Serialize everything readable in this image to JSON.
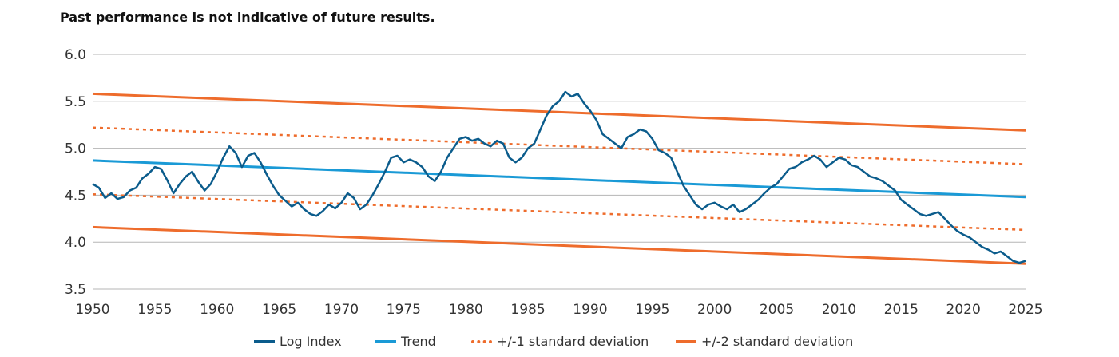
{
  "header": {
    "note": "Past performance is not indicative of future results."
  },
  "chart_data": {
    "type": "line",
    "title": "",
    "xlabel": "",
    "ylabel": "",
    "xlim": [
      1950,
      2025
    ],
    "ylim": [
      3.5,
      6.0
    ],
    "x_ticks": [
      "1950",
      "1955",
      "1960",
      "1965",
      "1970",
      "1975",
      "1980",
      "1985",
      "1990",
      "1995",
      "2000",
      "2005",
      "2010",
      "2015",
      "2020",
      "2025"
    ],
    "y_ticks": [
      "6.0",
      "5.5",
      "5.0",
      "4.5",
      "4.0",
      "3.5"
    ],
    "grid": "horizontal",
    "legend_position": "bottom",
    "series": [
      {
        "name": "Log Index",
        "color": "#0b5c8c",
        "style": "solid",
        "x": [
          1950,
          1950.5,
          1951,
          1951.5,
          1952,
          1952.5,
          1953,
          1953.5,
          1954,
          1954.5,
          1955,
          1955.5,
          1956,
          1956.5,
          1957,
          1957.5,
          1958,
          1958.5,
          1959,
          1959.5,
          1960,
          1960.5,
          1961,
          1961.5,
          1962,
          1962.5,
          1963,
          1963.5,
          1964,
          1964.5,
          1965,
          1965.5,
          1966,
          1966.5,
          1967,
          1967.5,
          1968,
          1968.5,
          1969,
          1969.5,
          1970,
          1970.5,
          1971,
          1971.5,
          1972,
          1972.5,
          1973,
          1973.5,
          1974,
          1974.5,
          1975,
          1975.5,
          1976,
          1976.5,
          1977,
          1977.5,
          1978,
          1978.5,
          1979,
          1979.5,
          1980,
          1980.5,
          1981,
          1981.5,
          1982,
          1982.5,
          1983,
          1983.5,
          1984,
          1984.5,
          1985,
          1985.5,
          1986,
          1986.5,
          1987,
          1987.5,
          1988,
          1988.5,
          1989,
          1989.5,
          1990,
          1990.5,
          1991,
          1991.5,
          1992,
          1992.5,
          1993,
          1993.5,
          1994,
          1994.5,
          1995,
          1995.5,
          1996,
          1996.5,
          1997,
          1997.5,
          1998,
          1998.5,
          1999,
          1999.5,
          2000,
          2000.5,
          2001,
          2001.5,
          2002,
          2002.5,
          2003,
          2003.5,
          2004,
          2004.5,
          2005,
          2005.5,
          2006,
          2006.5,
          2007,
          2007.5,
          2008,
          2008.5,
          2009,
          2009.5,
          2010,
          2010.5,
          2011,
          2011.5,
          2012,
          2012.5,
          2013,
          2013.5,
          2014,
          2014.5,
          2015,
          2015.5,
          2016,
          2016.5,
          2017,
          2017.5,
          2018,
          2018.5,
          2019,
          2019.5,
          2020,
          2020.5,
          2021,
          2021.5,
          2022,
          2022.5,
          2023,
          2023.5,
          2024,
          2024.5,
          2025
        ],
        "values": [
          4.62,
          4.58,
          4.47,
          4.52,
          4.46,
          4.48,
          4.55,
          4.58,
          4.68,
          4.73,
          4.8,
          4.78,
          4.66,
          4.52,
          4.62,
          4.7,
          4.75,
          4.64,
          4.55,
          4.62,
          4.75,
          4.9,
          5.02,
          4.95,
          4.8,
          4.92,
          4.95,
          4.85,
          4.72,
          4.6,
          4.5,
          4.44,
          4.38,
          4.42,
          4.35,
          4.3,
          4.28,
          4.33,
          4.4,
          4.36,
          4.42,
          4.52,
          4.47,
          4.35,
          4.4,
          4.5,
          4.62,
          4.75,
          4.9,
          4.92,
          4.85,
          4.88,
          4.85,
          4.8,
          4.7,
          4.65,
          4.75,
          4.9,
          5.0,
          5.1,
          5.12,
          5.08,
          5.1,
          5.05,
          5.02,
          5.08,
          5.05,
          4.9,
          4.85,
          4.9,
          5.0,
          5.05,
          5.2,
          5.35,
          5.45,
          5.5,
          5.6,
          5.55,
          5.58,
          5.48,
          5.4,
          5.3,
          5.15,
          5.1,
          5.05,
          5.0,
          5.12,
          5.15,
          5.2,
          5.18,
          5.1,
          4.98,
          4.95,
          4.9,
          4.75,
          4.6,
          4.5,
          4.4,
          4.35,
          4.4,
          4.42,
          4.38,
          4.35,
          4.4,
          4.32,
          4.35,
          4.4,
          4.45,
          4.52,
          4.58,
          4.62,
          4.7,
          4.78,
          4.8,
          4.85,
          4.88,
          4.92,
          4.88,
          4.8,
          4.85,
          4.9,
          4.88,
          4.82,
          4.8,
          4.75,
          4.7,
          4.68,
          4.65,
          4.6,
          4.55,
          4.45,
          4.4,
          4.35,
          4.3,
          4.28,
          4.3,
          4.32,
          4.25,
          4.18,
          4.12,
          4.08,
          4.05,
          4.0,
          3.95,
          3.92,
          3.88,
          3.9,
          3.85,
          3.8,
          3.78,
          3.8
        ]
      },
      {
        "name": "Trend",
        "color": "#1a9ad6",
        "style": "solid",
        "x": [
          1950,
          2025
        ],
        "values": [
          4.87,
          4.48
        ]
      },
      {
        "name": "+/-1 standard deviation",
        "color": "#ee6c2c",
        "style": "dotted",
        "x": [
          1950,
          2025
        ],
        "values": [
          5.22,
          4.83
        ],
        "lower_values": [
          4.51,
          4.13
        ]
      },
      {
        "name": "+/-2 standard deviation",
        "color": "#ee6c2c",
        "style": "solid",
        "x": [
          1950,
          2025
        ],
        "values": [
          5.58,
          5.19
        ],
        "lower_values": [
          4.16,
          3.77
        ]
      }
    ]
  }
}
